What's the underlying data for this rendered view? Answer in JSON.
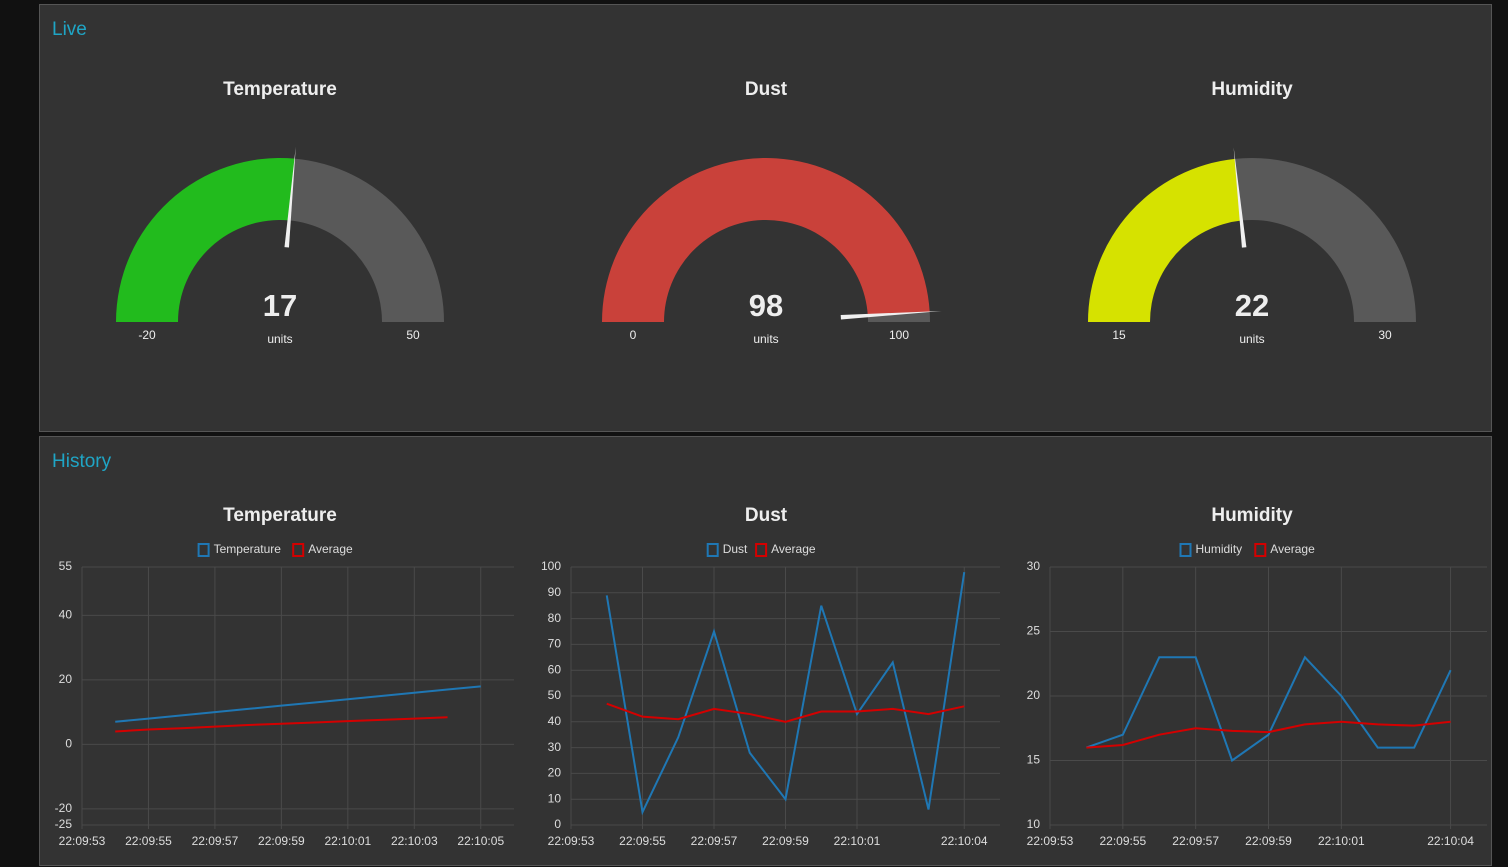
{
  "live": {
    "title": "Live",
    "gauges": [
      {
        "title": "Temperature",
        "value": 17,
        "units": "units",
        "min": -20,
        "max": 50,
        "color": "#22bb1d"
      },
      {
        "title": "Dust",
        "value": 98,
        "units": "units",
        "min": 0,
        "max": 100,
        "color": "#c9413a"
      },
      {
        "title": "Humidity",
        "value": 22,
        "units": "units",
        "min": 15,
        "max": 30,
        "color": "#d6e200"
      }
    ]
  },
  "history": {
    "title": "History",
    "chart_data": [
      {
        "type": "line",
        "title": "Temperature",
        "x": [
          "22:09:54",
          "22:09:55",
          "22:09:56",
          "22:09:57",
          "22:09:58",
          "22:09:59",
          "22:10:00",
          "22:10:01",
          "22:10:02",
          "22:10:03",
          "22:10:04",
          "22:10:05"
        ],
        "xlim": [
          "22:09:53",
          "22:10:06"
        ],
        "xticks": [
          "22:09:53",
          "22:09:55",
          "22:09:57",
          "22:09:59",
          "22:10:01",
          "22:10:03",
          "22:10:05"
        ],
        "ylim": [
          -25,
          55
        ],
        "yticks": [
          55,
          40,
          20,
          0,
          -20,
          -25
        ],
        "grid": true,
        "series": [
          {
            "name": "Temperature",
            "color": "#1f77b4",
            "values": [
              7,
              8,
              9,
              10,
              11,
              12,
              13,
              14,
              15,
              16,
              17,
              18
            ]
          },
          {
            "name": "Average",
            "color": "#d40000",
            "values": [
              4,
              4.6,
              5,
              5.5,
              6,
              6.4,
              6.8,
              7.2,
              7.6,
              8,
              8.4,
              null
            ]
          }
        ]
      },
      {
        "type": "line",
        "title": "Dust",
        "x": [
          "22:09:54",
          "22:09:55",
          "22:09:56",
          "22:09:57",
          "22:09:58",
          "22:09:59",
          "22:10:00",
          "22:10:01",
          "22:10:02",
          "22:10:03",
          "22:10:04"
        ],
        "xlim": [
          "22:09:53",
          "22:10:05"
        ],
        "xticks": [
          "22:09:53",
          "22:09:55",
          "22:09:57",
          "22:09:59",
          "22:10:01",
          "22:10:04"
        ],
        "ylim": [
          0,
          100
        ],
        "yticks": [
          100,
          90,
          80,
          70,
          60,
          50,
          40,
          30,
          20,
          10,
          0
        ],
        "grid": true,
        "series": [
          {
            "name": "Dust",
            "color": "#1f77b4",
            "values": [
              89,
              5,
              34,
              75,
              28,
              10,
              85,
              43,
              63,
              6,
              98
            ]
          },
          {
            "name": "Average",
            "color": "#d40000",
            "values": [
              47,
              42,
              41,
              45,
              43,
              40,
              44,
              44,
              45,
              43,
              46
            ]
          }
        ]
      },
      {
        "type": "line",
        "title": "Humidity",
        "x": [
          "22:09:54",
          "22:09:55",
          "22:09:56",
          "22:09:57",
          "22:09:58",
          "22:09:59",
          "22:10:00",
          "22:10:01",
          "22:10:02",
          "22:10:03",
          "22:10:04"
        ],
        "xlim": [
          "22:09:53",
          "22:10:05"
        ],
        "xticks": [
          "22:09:53",
          "22:09:55",
          "22:09:57",
          "22:09:59",
          "22:10:01",
          "22:10:04"
        ],
        "ylim": [
          10,
          30
        ],
        "yticks": [
          30,
          25,
          20,
          15,
          10
        ],
        "grid": true,
        "series": [
          {
            "name": "Humidity",
            "color": "#1f77b4",
            "values": [
              16,
              17,
              23,
              23,
              15,
              17,
              23,
              20,
              16,
              16,
              22
            ]
          },
          {
            "name": "Average",
            "color": "#d40000",
            "values": [
              16,
              16.2,
              17,
              17.5,
              17.3,
              17.2,
              17.8,
              18,
              17.8,
              17.7,
              18
            ]
          }
        ]
      }
    ]
  }
}
